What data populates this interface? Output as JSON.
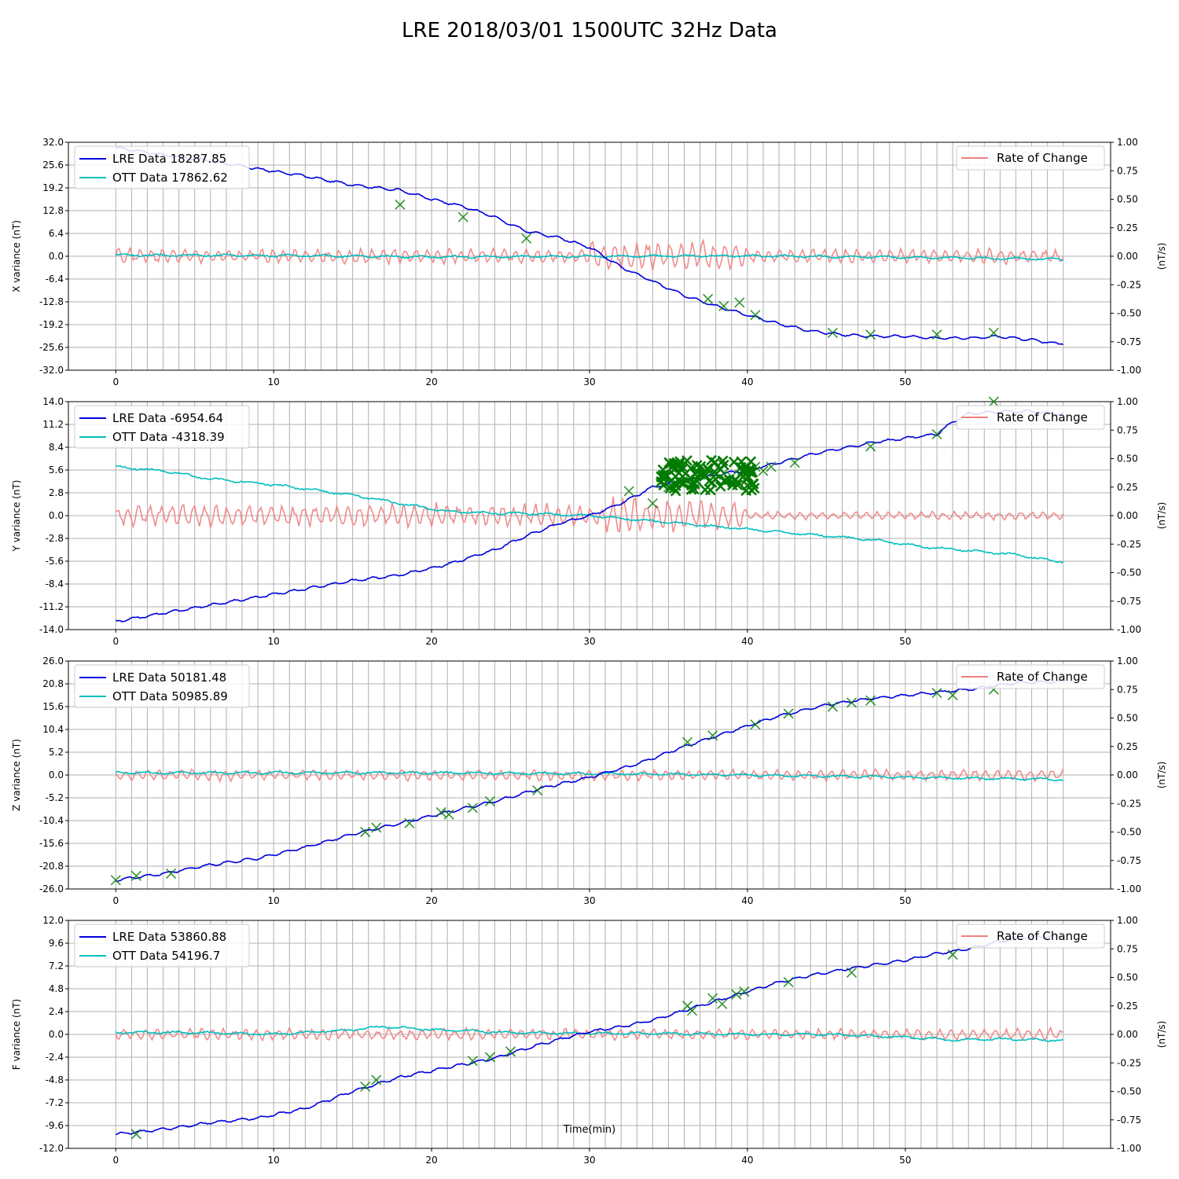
{
  "title": "LRE 2018/03/01 1500UTC 32Hz Data",
  "xlabel": "Time(min)",
  "right_axis_label": "(nT/s)",
  "rate_legend": "Rate of Change",
  "colors": {
    "lre": "#0000dd",
    "ott": "#00bfbf",
    "rate": "#f08080",
    "marker": "#007a00",
    "grid": "#b0b0b0"
  },
  "chart_data": [
    {
      "type": "line",
      "component": "X",
      "ylabel": "X variance (nT)",
      "ylim": [
        -32,
        32
      ],
      "yticks": [
        "32.0",
        "25.6",
        "19.2",
        "12.8",
        "6.4",
        "0.0",
        "-6.4",
        "-12.8",
        "-19.2",
        "-25.6",
        "-32.0"
      ],
      "y2lim": [
        -1,
        1
      ],
      "y2ticks": [
        "1.00",
        "0.75",
        "0.50",
        "0.25",
        "0.00",
        "-0.25",
        "-0.50",
        "-0.75",
        "-1.00"
      ],
      "xlim": [
        -3,
        63
      ],
      "xticks": [
        0,
        10,
        20,
        30,
        40,
        50
      ],
      "series": [
        {
          "name": "LRE Data 18287.85",
          "x": [
            0,
            3,
            6,
            9,
            12,
            15,
            18,
            20,
            22,
            24,
            26,
            28,
            30,
            32,
            34,
            36,
            38,
            40,
            42,
            44,
            46,
            48,
            50,
            52,
            54,
            56,
            58,
            59.5
          ],
          "y": [
            30.5,
            28.5,
            26.8,
            24.5,
            22.5,
            20,
            18.5,
            16,
            14,
            11,
            7,
            5.3,
            2.5,
            -3,
            -7,
            -11,
            -14,
            -16.5,
            -19,
            -21,
            -22,
            -22.5,
            -22.5,
            -23,
            -23,
            -22.5,
            -23.5,
            -24.5
          ]
        },
        {
          "name": "OTT Data 17862.62",
          "x": [
            0,
            10,
            20,
            30,
            40,
            50,
            59.5
          ],
          "y": [
            0.3,
            0.2,
            -0.2,
            0,
            0.1,
            -0.3,
            -0.8
          ]
        },
        {
          "name": "Rate of Change",
          "axis": "right",
          "x": [
            0,
            60
          ],
          "y": [
            0,
            0
          ]
        }
      ],
      "markers": {
        "x": [
          18,
          22,
          26,
          37.5,
          38.5,
          39.5,
          40.5,
          45.4,
          47.8,
          52,
          55.6
        ],
        "y": [
          14.5,
          11,
          5,
          -12,
          -14,
          -13,
          -16.5,
          -21.5,
          -22,
          -22,
          -21.5
        ]
      }
    },
    {
      "type": "line",
      "component": "Y",
      "ylabel": "Y variance (nT)",
      "ylim": [
        -14,
        14
      ],
      "yticks": [
        "14.0",
        "11.2",
        "8.4",
        "5.6",
        "2.8",
        "0.0",
        "-2.8",
        "-5.6",
        "-8.4",
        "-11.2",
        "-14.0"
      ],
      "y2lim": [
        -1,
        1
      ],
      "y2ticks": [
        "1.00",
        "0.75",
        "0.50",
        "0.25",
        "0.00",
        "-0.25",
        "-0.50",
        "-0.75",
        "-1.00"
      ],
      "xlim": [
        -3,
        63
      ],
      "xticks": [
        0,
        10,
        20,
        30,
        40,
        50
      ],
      "series": [
        {
          "name": "LRE Data -6954.64",
          "x": [
            0,
            3,
            6,
            9,
            12,
            15,
            18,
            21,
            24,
            26,
            28,
            30,
            32,
            34,
            36,
            38,
            40,
            42,
            44,
            46,
            48,
            50,
            52,
            53,
            54,
            56,
            58,
            59.5
          ],
          "y": [
            -13,
            -12,
            -11,
            -10,
            -9,
            -8,
            -7.3,
            -6,
            -4.2,
            -2.5,
            -1,
            0,
            1.5,
            3.5,
            4.3,
            5,
            5.6,
            6.5,
            7.5,
            8.3,
            9,
            9.5,
            10,
            11.5,
            12.5,
            12.8,
            12.8,
            12.5
          ]
        },
        {
          "name": "OTT Data -4318.39",
          "x": [
            0,
            3,
            6,
            9,
            12,
            15,
            18,
            21,
            24,
            27,
            30,
            33,
            36,
            39,
            42,
            45,
            48,
            51,
            54,
            57,
            59.5
          ],
          "y": [
            6,
            5.5,
            4.5,
            4,
            3.3,
            2.5,
            1.5,
            0.5,
            0.3,
            0.2,
            0,
            -0.5,
            -1,
            -1.5,
            -2,
            -2.5,
            -3,
            -3.8,
            -4.3,
            -4.8,
            -5.6
          ]
        },
        {
          "name": "Rate of Change",
          "axis": "right",
          "x": [
            0,
            60
          ],
          "y": [
            0,
            0
          ]
        }
      ],
      "markers": {
        "x": [
          32.5,
          34,
          34.5,
          35,
          35.5,
          36,
          36.5,
          37,
          37.5,
          38,
          38.5,
          39,
          39.5,
          40,
          40.5,
          41,
          41.5,
          43,
          47.8,
          52,
          55.6
        ],
        "y": [
          3,
          1.5,
          4,
          3.5,
          4,
          4.5,
          4,
          5,
          5.5,
          5,
          5.2,
          4.8,
          5,
          5.5,
          6,
          5.5,
          6,
          6.5,
          8.5,
          10,
          14
        ]
      }
    },
    {
      "type": "line",
      "component": "Z",
      "ylabel": "Z variance (nT)",
      "ylim": [
        -26,
        26
      ],
      "yticks": [
        "26.0",
        "20.8",
        "15.6",
        "10.4",
        "5.2",
        "0.0",
        "-5.2",
        "-10.4",
        "-15.6",
        "-20.8",
        "-26.0"
      ],
      "y2lim": [
        -1,
        1
      ],
      "y2ticks": [
        "1.00",
        "0.75",
        "0.50",
        "0.25",
        "0.00",
        "-0.25",
        "-0.50",
        "-0.75",
        "-1.00"
      ],
      "xlim": [
        -3,
        63
      ],
      "xticks": [
        0,
        10,
        20,
        30,
        40,
        50
      ],
      "series": [
        {
          "name": "LRE Data 50181.48",
          "x": [
            0,
            3,
            6,
            9,
            12,
            15,
            18,
            21,
            24,
            27,
            30,
            33,
            36,
            39,
            42,
            45,
            48,
            51,
            54,
            57,
            59.5
          ],
          "y": [
            -24,
            -22.5,
            -20.5,
            -19,
            -16.5,
            -13.5,
            -11,
            -8.5,
            -6,
            -3,
            -0.5,
            2.5,
            6.5,
            10,
            13.5,
            16,
            17.5,
            18.5,
            19.5,
            21,
            21.3
          ]
        },
        {
          "name": "OTT Data 50985.89",
          "x": [
            0,
            10,
            20,
            30,
            40,
            50,
            59.5
          ],
          "y": [
            0.5,
            0.5,
            0.5,
            0.3,
            0,
            -0.5,
            -1
          ]
        },
        {
          "name": "Rate of Change",
          "axis": "right",
          "x": [
            0,
            60
          ],
          "y": [
            0,
            0
          ]
        }
      ],
      "markers": {
        "x": [
          0,
          1.3,
          3.5,
          15.8,
          16.5,
          18.6,
          20.6,
          21.1,
          22.6,
          23.7,
          26.7,
          36.2,
          37.8,
          40.5,
          42.6,
          45.4,
          46.6,
          47.8,
          52,
          53,
          55.6
        ],
        "y": [
          -24,
          -23,
          -22.5,
          -13,
          -12,
          -11,
          -8.5,
          -9,
          -7.5,
          -6,
          -3.5,
          7.5,
          9,
          11.5,
          14,
          15.6,
          16.5,
          17,
          18.7,
          18.2,
          19.5
        ]
      }
    },
    {
      "type": "line",
      "component": "F",
      "ylabel": "F variance (nT)",
      "ylim": [
        -12,
        12
      ],
      "yticks": [
        "12.0",
        "9.6",
        "7.2",
        "4.8",
        "2.4",
        "0.0",
        "-2.4",
        "-4.8",
        "-7.2",
        "-9.6",
        "-12.0"
      ],
      "y2lim": [
        -1,
        1
      ],
      "y2ticks": [
        "1.00",
        "0.75",
        "0.50",
        "0.25",
        "0.00",
        "-0.25",
        "-0.50",
        "-0.75",
        "-1.00"
      ],
      "xlim": [
        -3,
        63
      ],
      "xticks": [
        0,
        10,
        20,
        30,
        40,
        50
      ],
      "series": [
        {
          "name": "LRE Data 53860.88",
          "x": [
            0,
            3,
            6,
            9,
            12,
            15,
            18,
            21,
            24,
            27,
            30,
            32,
            34,
            36,
            38,
            40,
            42,
            44,
            46,
            48,
            50,
            52,
            54,
            56,
            58,
            59.5
          ],
          "y": [
            -10.5,
            -10,
            -9.3,
            -8.8,
            -7.8,
            -6,
            -4.5,
            -3.5,
            -2.5,
            -1,
            0.3,
            0.8,
            1.5,
            2.5,
            3.5,
            4.5,
            5.5,
            6.2,
            6.8,
            7.3,
            7.8,
            8.5,
            9,
            9.8,
            10.3,
            10.3
          ]
        },
        {
          "name": "OTT Data 54196.7",
          "x": [
            0,
            5,
            10,
            15,
            17,
            20,
            25,
            30,
            35,
            40,
            45,
            50,
            53,
            56,
            59.5
          ],
          "y": [
            0.2,
            0.2,
            0,
            0.5,
            0.8,
            0.5,
            0.2,
            0.1,
            0.1,
            0,
            0,
            -0.3,
            -0.6,
            -0.5,
            -0.6
          ]
        },
        {
          "name": "Rate of Change",
          "axis": "right",
          "x": [
            0,
            60
          ],
          "y": [
            0,
            0
          ]
        }
      ],
      "markers": {
        "x": [
          1.3,
          15.8,
          16.5,
          22.6,
          23.7,
          25,
          36.2,
          36.5,
          37.8,
          38.4,
          39.3,
          39.8,
          42.6,
          46.6,
          53
        ],
        "y": [
          -10.5,
          -5.5,
          -4.8,
          -2.8,
          -2.4,
          -1.8,
          3,
          2.5,
          3.8,
          3.2,
          4.2,
          4.5,
          5.5,
          6.5,
          8.4
        ]
      }
    }
  ]
}
